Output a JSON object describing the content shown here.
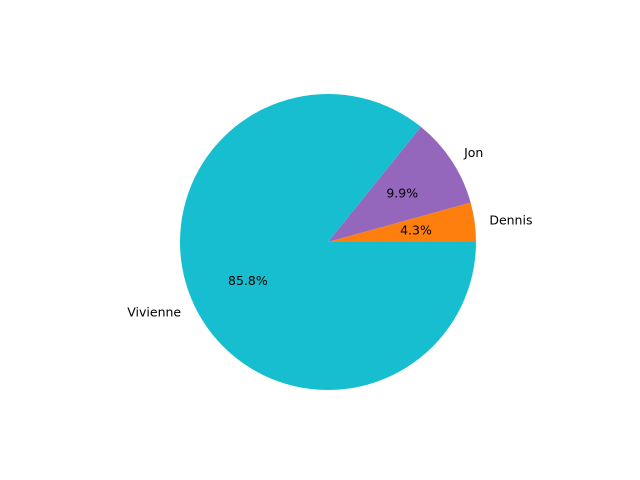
{
  "chart_data": {
    "type": "pie",
    "title": "",
    "start_angle_deg": 0,
    "direction": "counterclockwise",
    "slices": [
      {
        "label": "Dennis",
        "value": 4.3,
        "pct_label": "4.3%",
        "color": "#ff7f0e"
      },
      {
        "label": "Jon",
        "value": 9.9,
        "pct_label": "9.9%",
        "color": "#9467bd"
      },
      {
        "label": "Vivienne",
        "value": 85.8,
        "pct_label": "85.8%",
        "color": "#17becf"
      }
    ]
  }
}
